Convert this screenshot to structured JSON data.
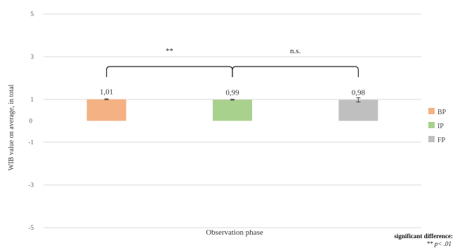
{
  "chart_data": {
    "type": "bar",
    "categories": [
      "BP",
      "IP",
      "FP"
    ],
    "values": [
      1.01,
      0.99,
      0.98
    ],
    "errors": [
      0.02,
      0.02,
      0.1
    ],
    "data_labels": [
      "1,01",
      "0,99",
      "0,98"
    ],
    "colors": [
      "#f4b183",
      "#a9d18e",
      "#bfbfbf"
    ],
    "xlabel": "Observation phase",
    "ylabel": "WIB value on average, in total",
    "ylim": [
      -5,
      5
    ],
    "yticks": [
      5,
      3,
      1,
      0,
      -1,
      -3,
      -5
    ],
    "grid": true,
    "legend_position": "right",
    "legend": [
      "BP",
      "IP",
      "FP"
    ],
    "significance": [
      {
        "from": "BP",
        "to": "IP",
        "label": "**"
      },
      {
        "from": "IP",
        "to": "FP",
        "label": "n.s."
      }
    ],
    "note": {
      "title": "significant difference:",
      "line": "** p< .01"
    }
  }
}
